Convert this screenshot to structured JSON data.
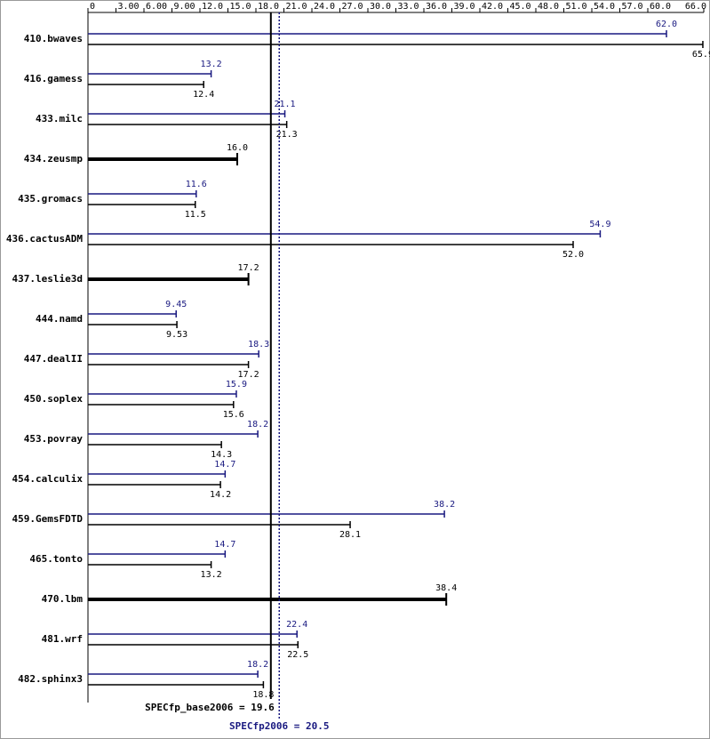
{
  "chart_data": {
    "type": "bar",
    "orientation": "horizontal",
    "categories": [
      "410.bwaves",
      "416.gamess",
      "433.milc",
      "434.zeusmp",
      "435.gromacs",
      "436.cactusADM",
      "437.leslie3d",
      "444.namd",
      "447.dealII",
      "450.soplex",
      "453.povray",
      "454.calculix",
      "459.GemsFDTD",
      "465.tonto",
      "470.lbm",
      "481.wrf",
      "482.sphinx3"
    ],
    "series": [
      {
        "color": "#191980",
        "values": [
          62.0,
          13.2,
          21.1,
          null,
          11.6,
          54.9,
          null,
          9.45,
          18.3,
          15.9,
          18.2,
          14.7,
          38.2,
          14.7,
          null,
          22.4,
          18.2
        ],
        "value_labels": [
          "62.0",
          "13.2",
          "21.1",
          null,
          "11.6",
          "54.9",
          null,
          "9.45",
          "18.3",
          "15.9",
          "18.2",
          "14.7",
          "38.2",
          "14.7",
          null,
          "22.4",
          "18.2"
        ]
      },
      {
        "color": "#000000",
        "values": [
          65.9,
          12.4,
          21.3,
          16.0,
          11.5,
          52.0,
          17.2,
          9.53,
          17.2,
          15.6,
          14.3,
          14.2,
          28.1,
          13.2,
          38.4,
          22.5,
          18.8
        ],
        "value_labels": [
          "65.9",
          "12.4",
          "21.3",
          "16.0",
          "11.5",
          "52.0",
          "17.2",
          "9.53",
          "17.2",
          "15.6",
          "14.3",
          "14.2",
          "28.1",
          "13.2",
          "38.4",
          "22.5",
          "18.8"
        ]
      }
    ],
    "xlim": [
      0,
      66
    ],
    "xticks": [
      0,
      {
        "value": 3,
        "label": "3.00"
      },
      {
        "value": 6,
        "label": "6.00"
      },
      {
        "value": 9,
        "label": "9.00"
      },
      {
        "value": 12,
        "label": "12.0"
      },
      {
        "value": 15,
        "label": "15.0"
      },
      {
        "value": 18,
        "label": "18.0"
      },
      {
        "value": 21,
        "label": "21.0"
      },
      {
        "value": 24,
        "label": "24.0"
      },
      {
        "value": 27,
        "label": "27.0"
      },
      {
        "value": 30,
        "label": "30.0"
      },
      {
        "value": 33,
        "label": "33.0"
      },
      {
        "value": 36,
        "label": "36.0"
      },
      {
        "value": 39,
        "label": "39.0"
      },
      {
        "value": 42,
        "label": "42.0"
      },
      {
        "value": 45,
        "label": "45.0"
      },
      {
        "value": 48,
        "label": "48.0"
      },
      {
        "value": 51,
        "label": "51.0"
      },
      {
        "value": 54,
        "label": "54.0"
      },
      {
        "value": 57,
        "label": "57.0"
      },
      {
        "value": 60,
        "label": "60.0"
      },
      {
        "value": 66,
        "label": "66.0"
      }
    ],
    "reference_lines": [
      {
        "value": 19.6,
        "label": "SPECfp_base2006 = 19.6",
        "color": "#000000",
        "style": "solid"
      },
      {
        "value": 20.5,
        "label": "SPECfp2006 = 20.5",
        "color": "#191980",
        "style": "dotted"
      }
    ]
  }
}
